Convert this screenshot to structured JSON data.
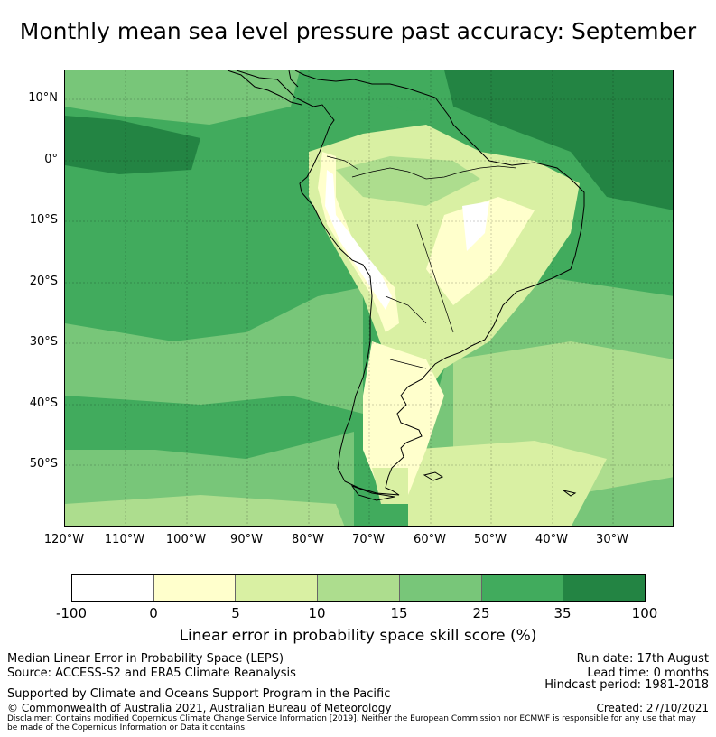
{
  "title": "Monthly mean sea level pressure past accuracy: September",
  "lat_labels": [
    "10°N",
    "0°",
    "10°S",
    "20°S",
    "30°S",
    "40°S",
    "50°S"
  ],
  "lon_labels": [
    "120°W",
    "110°W",
    "100°W",
    "90°W",
    "80°W",
    "70°W",
    "60°W",
    "50°W",
    "40°W",
    "30°W"
  ],
  "colorbar": {
    "ticks": [
      "-100",
      "0",
      "5",
      "10",
      "15",
      "25",
      "35",
      "100"
    ],
    "colors": [
      "#ffffff",
      "#ffffcc",
      "#d9f0a3",
      "#addd8e",
      "#78c679",
      "#41ab5d",
      "#238443"
    ],
    "label": "Linear error in probability space skill score (%)"
  },
  "footer": {
    "left1": "Median Linear Error in Probability Space (LEPS)",
    "left2": "Source: ACCESS-S2 and ERA5 Climate Reanalysis",
    "left3": "Supported by Climate and Oceans Support Program in the Pacific",
    "left4": "© Commonwealth of Australia 2021, Australian Bureau of Meteorology",
    "disclaimer1": "Disclaimer: Contains modified Copernicus Climate Change Service Information [2019]. Neither the European Commission nor ECMWF is responsible for any use that may",
    "disclaimer2": "be made of the Copernicus Information or Data it contains.",
    "run_date": "Run date: 17th August",
    "lead_time": "Lead time: 0 months",
    "hindcast": "Hindcast period: 1981-2018",
    "created": "Created: 27/10/2021"
  }
}
